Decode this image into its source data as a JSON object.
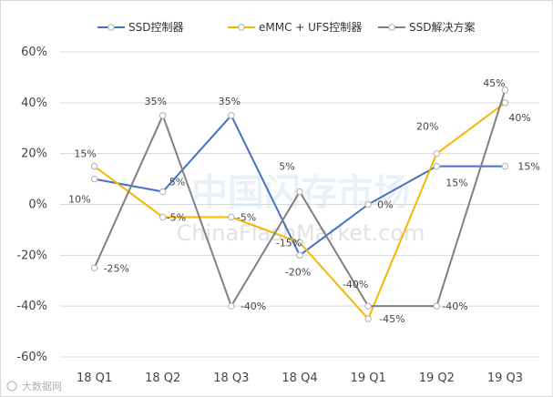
{
  "chart_data": {
    "type": "line",
    "categories": [
      "18 Q1",
      "18 Q2",
      "18 Q3",
      "18 Q4",
      "19 Q1",
      "19 Q2",
      "19 Q3"
    ],
    "y_ticks": [
      "60%",
      "40%",
      "20%",
      "0%",
      "-20%",
      "-40%",
      "-60%"
    ],
    "ylim": [
      -60,
      60
    ],
    "y_unit": "%",
    "grid": true,
    "legend_position": "top",
    "series": [
      {
        "name": "SSD控制器",
        "color": "#4472c4",
        "values": [
          10,
          5,
          35,
          -20,
          0,
          15,
          15
        ],
        "labels": [
          "10%",
          "5%",
          "35%",
          "-20%",
          "0%",
          "15%",
          "15%"
        ]
      },
      {
        "name": "eMMC + UFS控制器",
        "color": "#f5b700",
        "values": [
          15,
          -5,
          -5,
          -15,
          -45,
          20,
          40
        ],
        "labels": [
          "15%",
          "-5%",
          "-5%",
          "-15%",
          "-45%",
          "20%",
          "40%"
        ]
      },
      {
        "name": "SSD解决方案",
        "color": "#808080",
        "values": [
          -25,
          35,
          -40,
          5,
          -40,
          -40,
          45
        ],
        "labels": [
          "-25%",
          "35%",
          "-40%",
          "5%",
          "-40%",
          "-40%",
          "45%"
        ]
      }
    ]
  },
  "watermark": {
    "main": "中国闪存市场",
    "sub": "ChinaFlashMarket.com",
    "corner": "大数据网"
  }
}
